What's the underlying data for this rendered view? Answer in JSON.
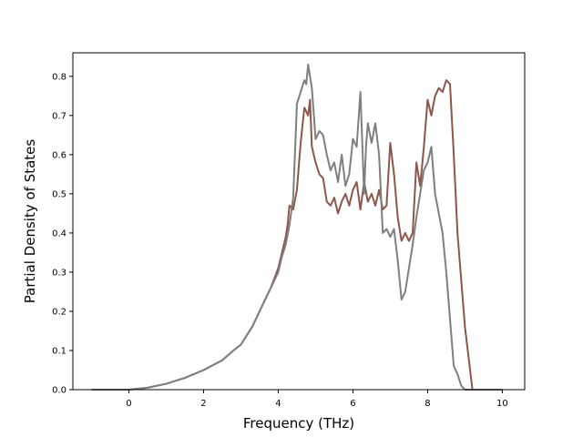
{
  "chart_data": {
    "type": "line",
    "title": "",
    "xlabel": "Frequency (THz)",
    "ylabel": "Partial Density of States",
    "xlim": [
      -1.5,
      10.6
    ],
    "ylim": [
      0,
      0.86
    ],
    "xticks": [
      0,
      2,
      4,
      6,
      8,
      10
    ],
    "xtick_labels": [
      "0",
      "2",
      "4",
      "6",
      "8",
      "10"
    ],
    "yticks": [
      0.0,
      0.1,
      0.2,
      0.3,
      0.4,
      0.5,
      0.6,
      0.7,
      0.8
    ],
    "ytick_labels": [
      "0.0",
      "0.1",
      "0.2",
      "0.3",
      "0.4",
      "0.5",
      "0.6",
      "0.7",
      "0.8"
    ],
    "grid": false,
    "legend": "none",
    "series": [
      {
        "color": "#8c564b",
        "x": [
          -1.0,
          0.0,
          0.5,
          1.0,
          1.5,
          2.0,
          2.5,
          2.8,
          3.0,
          3.3,
          3.6,
          3.8,
          4.0,
          4.1,
          4.2,
          4.25,
          4.3,
          4.4,
          4.5,
          4.6,
          4.7,
          4.8,
          4.85,
          4.9,
          5.0,
          5.1,
          5.2,
          5.3,
          5.4,
          5.5,
          5.6,
          5.7,
          5.8,
          5.9,
          6.0,
          6.1,
          6.2,
          6.3,
          6.4,
          6.5,
          6.6,
          6.7,
          6.8,
          6.9,
          7.0,
          7.1,
          7.2,
          7.3,
          7.4,
          7.5,
          7.6,
          7.7,
          7.8,
          7.9,
          8.0,
          8.1,
          8.2,
          8.3,
          8.4,
          8.5,
          8.6,
          8.7,
          8.8,
          9.0,
          9.2,
          10.0
        ],
        "values": [
          0.0,
          0.0,
          0.005,
          0.015,
          0.03,
          0.05,
          0.075,
          0.1,
          0.115,
          0.16,
          0.22,
          0.26,
          0.31,
          0.35,
          0.39,
          0.42,
          0.47,
          0.46,
          0.51,
          0.63,
          0.72,
          0.7,
          0.74,
          0.62,
          0.58,
          0.55,
          0.54,
          0.48,
          0.47,
          0.49,
          0.45,
          0.48,
          0.5,
          0.47,
          0.51,
          0.53,
          0.46,
          0.53,
          0.48,
          0.5,
          0.47,
          0.51,
          0.46,
          0.47,
          0.63,
          0.55,
          0.44,
          0.38,
          0.4,
          0.38,
          0.4,
          0.58,
          0.52,
          0.62,
          0.74,
          0.7,
          0.75,
          0.77,
          0.76,
          0.79,
          0.78,
          0.6,
          0.4,
          0.16,
          0.0,
          0.0
        ]
      },
      {
        "color": "#7f7f7f",
        "x": [
          -1.0,
          0.0,
          0.5,
          1.0,
          1.5,
          2.0,
          2.5,
          2.8,
          3.0,
          3.3,
          3.6,
          3.8,
          4.0,
          4.1,
          4.2,
          4.3,
          4.4,
          4.5,
          4.6,
          4.7,
          4.75,
          4.8,
          4.9,
          5.0,
          5.1,
          5.2,
          5.3,
          5.4,
          5.5,
          5.6,
          5.7,
          5.8,
          5.9,
          6.0,
          6.1,
          6.2,
          6.3,
          6.35,
          6.4,
          6.5,
          6.6,
          6.7,
          6.8,
          6.9,
          7.0,
          7.1,
          7.2,
          7.3,
          7.4,
          7.5,
          7.6,
          7.7,
          7.8,
          7.9,
          8.0,
          8.1,
          8.2,
          8.3,
          8.4,
          8.5,
          8.6,
          8.7,
          8.8,
          8.9,
          9.0,
          9.2,
          10.0
        ],
        "values": [
          0.0,
          0.0,
          0.005,
          0.015,
          0.03,
          0.05,
          0.075,
          0.1,
          0.115,
          0.16,
          0.22,
          0.26,
          0.3,
          0.34,
          0.37,
          0.42,
          0.49,
          0.73,
          0.76,
          0.79,
          0.78,
          0.83,
          0.77,
          0.64,
          0.66,
          0.65,
          0.6,
          0.56,
          0.58,
          0.53,
          0.6,
          0.52,
          0.55,
          0.64,
          0.62,
          0.76,
          0.5,
          0.62,
          0.68,
          0.63,
          0.68,
          0.6,
          0.4,
          0.41,
          0.39,
          0.41,
          0.33,
          0.23,
          0.25,
          0.31,
          0.37,
          0.44,
          0.5,
          0.56,
          0.58,
          0.62,
          0.5,
          0.45,
          0.4,
          0.3,
          0.18,
          0.06,
          0.04,
          0.01,
          0.0,
          0.0,
          0.0
        ]
      }
    ]
  }
}
